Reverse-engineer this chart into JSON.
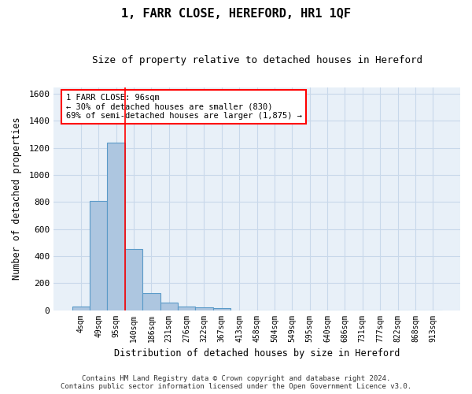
{
  "title": "1, FARR CLOSE, HEREFORD, HR1 1QF",
  "subtitle": "Size of property relative to detached houses in Hereford",
  "xlabel": "Distribution of detached houses by size in Hereford",
  "ylabel": "Number of detached properties",
  "footer_line1": "Contains HM Land Registry data © Crown copyright and database right 2024.",
  "footer_line2": "Contains public sector information licensed under the Open Government Licence v3.0.",
  "bin_labels": [
    "4sqm",
    "49sqm",
    "95sqm",
    "140sqm",
    "186sqm",
    "231sqm",
    "276sqm",
    "322sqm",
    "367sqm",
    "413sqm",
    "458sqm",
    "504sqm",
    "549sqm",
    "595sqm",
    "640sqm",
    "686sqm",
    "731sqm",
    "777sqm",
    "822sqm",
    "868sqm",
    "913sqm"
  ],
  "bar_values": [
    25,
    810,
    1240,
    455,
    125,
    58,
    27,
    18,
    14,
    0,
    0,
    0,
    0,
    0,
    0,
    0,
    0,
    0,
    0,
    0,
    0
  ],
  "bar_color": "#adc6e0",
  "bar_edge_color": "#5a9ac8",
  "grid_color": "#c8d8ea",
  "bg_color": "#e8f0f8",
  "annotation_line1": "1 FARR CLOSE: 96sqm",
  "annotation_line2": "← 30% of detached houses are smaller (830)",
  "annotation_line3": "69% of semi-detached houses are larger (1,875) →",
  "vline_index": 2,
  "ylim": [
    0,
    1650
  ],
  "yticks": [
    0,
    200,
    400,
    600,
    800,
    1000,
    1200,
    1400,
    1600
  ]
}
